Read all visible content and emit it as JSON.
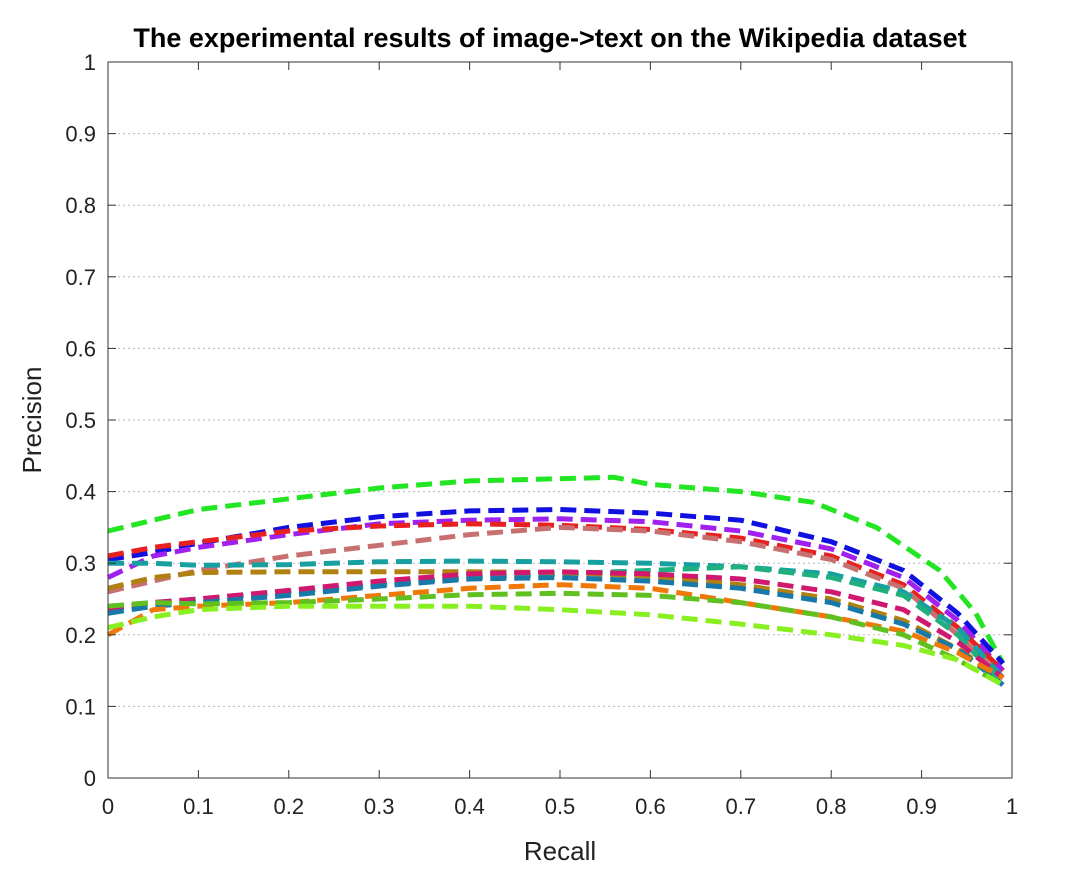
{
  "chart_data": {
    "type": "line",
    "title": "The experimental results of image->text on the Wikipedia dataset",
    "xlabel": "Recall",
    "ylabel": "Precision",
    "xlim": [
      0,
      1
    ],
    "ylim": [
      0,
      1
    ],
    "x_ticks": [
      "0",
      "0.1",
      "0.2",
      "0.3",
      "0.4",
      "0.5",
      "0.6",
      "0.7",
      "0.8",
      "0.9",
      "1"
    ],
    "y_ticks": [
      "0",
      "0.1",
      "0.2",
      "0.3",
      "0.4",
      "0.5",
      "0.6",
      "0.7",
      "0.8",
      "0.9",
      "1"
    ],
    "grid": "horizontal-dotted",
    "line_style": "dashed",
    "series": [
      {
        "color": "#22e622",
        "x": [
          0,
          0.05,
          0.1,
          0.2,
          0.3,
          0.4,
          0.5,
          0.56,
          0.6,
          0.7,
          0.78,
          0.85,
          0.92,
          0.96,
          0.99
        ],
        "y": [
          0.345,
          0.36,
          0.375,
          0.39,
          0.405,
          0.415,
          0.418,
          0.42,
          0.41,
          0.4,
          0.385,
          0.35,
          0.29,
          0.23,
          0.16
        ]
      },
      {
        "color": "#1010e0",
        "x": [
          0,
          0.05,
          0.1,
          0.2,
          0.3,
          0.4,
          0.5,
          0.6,
          0.7,
          0.8,
          0.88,
          0.94,
          0.99
        ],
        "y": [
          0.305,
          0.315,
          0.328,
          0.35,
          0.365,
          0.373,
          0.375,
          0.37,
          0.36,
          0.33,
          0.29,
          0.23,
          0.16
        ]
      },
      {
        "color": "#a020f0",
        "x": [
          0,
          0.05,
          0.1,
          0.2,
          0.3,
          0.4,
          0.5,
          0.6,
          0.7,
          0.8,
          0.88,
          0.94,
          0.99
        ],
        "y": [
          0.28,
          0.31,
          0.322,
          0.34,
          0.355,
          0.36,
          0.362,
          0.358,
          0.345,
          0.32,
          0.28,
          0.22,
          0.15
        ]
      },
      {
        "color": "#e82020",
        "x": [
          0,
          0.05,
          0.1,
          0.2,
          0.3,
          0.4,
          0.5,
          0.6,
          0.7,
          0.8,
          0.88,
          0.94,
          0.99
        ],
        "y": [
          0.31,
          0.322,
          0.33,
          0.345,
          0.352,
          0.355,
          0.353,
          0.347,
          0.335,
          0.31,
          0.27,
          0.21,
          0.15
        ]
      },
      {
        "color": "#c87070",
        "x": [
          0,
          0.05,
          0.1,
          0.2,
          0.3,
          0.4,
          0.5,
          0.6,
          0.7,
          0.8,
          0.88,
          0.94,
          0.99
        ],
        "y": [
          0.26,
          0.275,
          0.29,
          0.31,
          0.325,
          0.34,
          0.35,
          0.345,
          0.33,
          0.305,
          0.265,
          0.2,
          0.14
        ]
      },
      {
        "color": "#18a0a0",
        "x": [
          0,
          0.05,
          0.1,
          0.2,
          0.3,
          0.4,
          0.5,
          0.6,
          0.7,
          0.8,
          0.88,
          0.94,
          0.99
        ],
        "y": [
          0.3,
          0.3,
          0.297,
          0.298,
          0.302,
          0.303,
          0.302,
          0.3,
          0.295,
          0.285,
          0.26,
          0.21,
          0.14
        ]
      },
      {
        "color": "#20b080",
        "x": [
          0,
          0.05,
          0.1,
          0.2,
          0.3,
          0.4,
          0.5,
          0.6,
          0.7,
          0.8,
          0.88,
          0.94,
          0.99
        ],
        "y": [
          0.24,
          0.245,
          0.25,
          0.26,
          0.27,
          0.28,
          0.285,
          0.29,
          0.295,
          0.28,
          0.255,
          0.2,
          0.13
        ]
      },
      {
        "color": "#b08010",
        "x": [
          0,
          0.05,
          0.1,
          0.2,
          0.3,
          0.4,
          0.5,
          0.6,
          0.7,
          0.8,
          0.88,
          0.94,
          0.99
        ],
        "y": [
          0.265,
          0.28,
          0.287,
          0.288,
          0.288,
          0.288,
          0.287,
          0.282,
          0.27,
          0.25,
          0.22,
          0.18,
          0.14
        ]
      },
      {
        "color": "#d01870",
        "x": [
          0,
          0.05,
          0.1,
          0.2,
          0.3,
          0.4,
          0.5,
          0.6,
          0.7,
          0.8,
          0.88,
          0.94,
          0.99
        ],
        "y": [
          0.235,
          0.245,
          0.25,
          0.262,
          0.275,
          0.285,
          0.288,
          0.285,
          0.278,
          0.26,
          0.235,
          0.19,
          0.14
        ]
      },
      {
        "color": "#1878a8",
        "x": [
          0,
          0.05,
          0.1,
          0.2,
          0.3,
          0.4,
          0.5,
          0.6,
          0.7,
          0.8,
          0.88,
          0.94,
          0.99
        ],
        "y": [
          0.23,
          0.24,
          0.245,
          0.255,
          0.268,
          0.278,
          0.28,
          0.275,
          0.265,
          0.245,
          0.215,
          0.18,
          0.13
        ]
      },
      {
        "color": "#f07808",
        "x": [
          0,
          0.05,
          0.1,
          0.2,
          0.3,
          0.4,
          0.5,
          0.6,
          0.7,
          0.8,
          0.88,
          0.94,
          0.99
        ],
        "y": [
          0.2,
          0.235,
          0.24,
          0.245,
          0.255,
          0.265,
          0.27,
          0.265,
          0.245,
          0.225,
          0.205,
          0.175,
          0.14
        ]
      },
      {
        "color": "#60c020",
        "x": [
          0,
          0.05,
          0.1,
          0.2,
          0.3,
          0.4,
          0.5,
          0.6,
          0.7,
          0.8,
          0.88,
          0.94,
          0.99
        ],
        "y": [
          0.24,
          0.245,
          0.243,
          0.245,
          0.25,
          0.256,
          0.258,
          0.255,
          0.245,
          0.225,
          0.2,
          0.165,
          0.13
        ]
      },
      {
        "color": "#88f020",
        "x": [
          0,
          0.05,
          0.1,
          0.2,
          0.3,
          0.4,
          0.5,
          0.6,
          0.7,
          0.8,
          0.88,
          0.94,
          0.99
        ],
        "y": [
          0.21,
          0.225,
          0.235,
          0.24,
          0.24,
          0.24,
          0.235,
          0.228,
          0.215,
          0.2,
          0.185,
          0.165,
          0.13
        ]
      }
    ]
  }
}
